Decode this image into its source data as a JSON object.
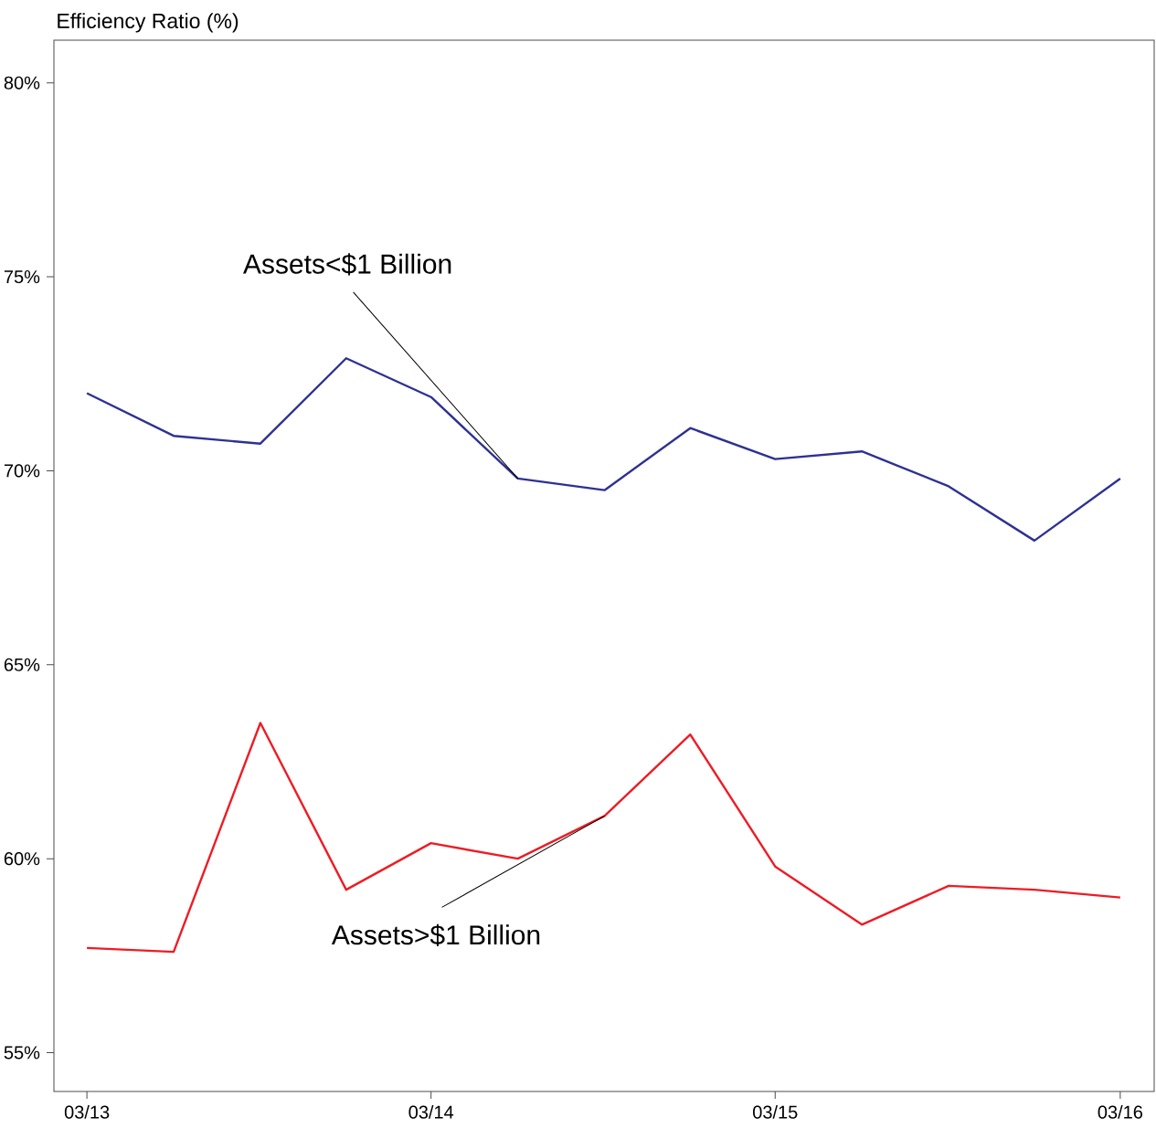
{
  "chart_data": {
    "type": "line",
    "ylabel": "Efficiency Ratio (%)",
    "x": [
      "2013-03",
      "2013-06",
      "2013-09",
      "2013-12",
      "2014-03",
      "2014-06",
      "2014-09",
      "2014-12",
      "2015-03",
      "2015-06",
      "2015-09",
      "2015-12",
      "2016-03"
    ],
    "series": [
      {
        "color": "#2e3192",
        "values": [
          72.0,
          70.9,
          70.7,
          72.9,
          71.9,
          69.8,
          69.5,
          71.1,
          70.3,
          70.5,
          69.6,
          68.2,
          69.8
        ]
      },
      {
        "color": "#ed1c24",
        "values": [
          57.7,
          57.6,
          63.5,
          59.2,
          60.4,
          60.0,
          61.1,
          63.2,
          59.8,
          58.3,
          59.3,
          59.2,
          59.0
        ]
      }
    ],
    "annotations": [
      {
        "text": "Assets<$1 Billion",
        "x": "2014-06",
        "y": 69.8
      },
      {
        "text": "Assets>$1 Billion",
        "x": "2014-09",
        "y": 61.1
      }
    ],
    "xlim": [
      "2013-01-25",
      "2016-04-06"
    ],
    "xticks": [
      {
        "value": "2013-03",
        "label": "03/13"
      },
      {
        "value": "2014-03",
        "label": "03/14"
      },
      {
        "value": "2015-03",
        "label": "03/15"
      },
      {
        "value": "2016-03",
        "label": "03/16"
      }
    ],
    "ylim": [
      54,
      81.1
    ],
    "yticks": [
      {
        "value": 55,
        "label": "55%"
      },
      {
        "value": 60,
        "label": "60%"
      },
      {
        "value": 65,
        "label": "65%"
      },
      {
        "value": 70,
        "label": "70%"
      },
      {
        "value": 75,
        "label": "75%"
      },
      {
        "value": 80,
        "label": "80%"
      }
    ],
    "marker": "none",
    "line_style": "solid"
  }
}
